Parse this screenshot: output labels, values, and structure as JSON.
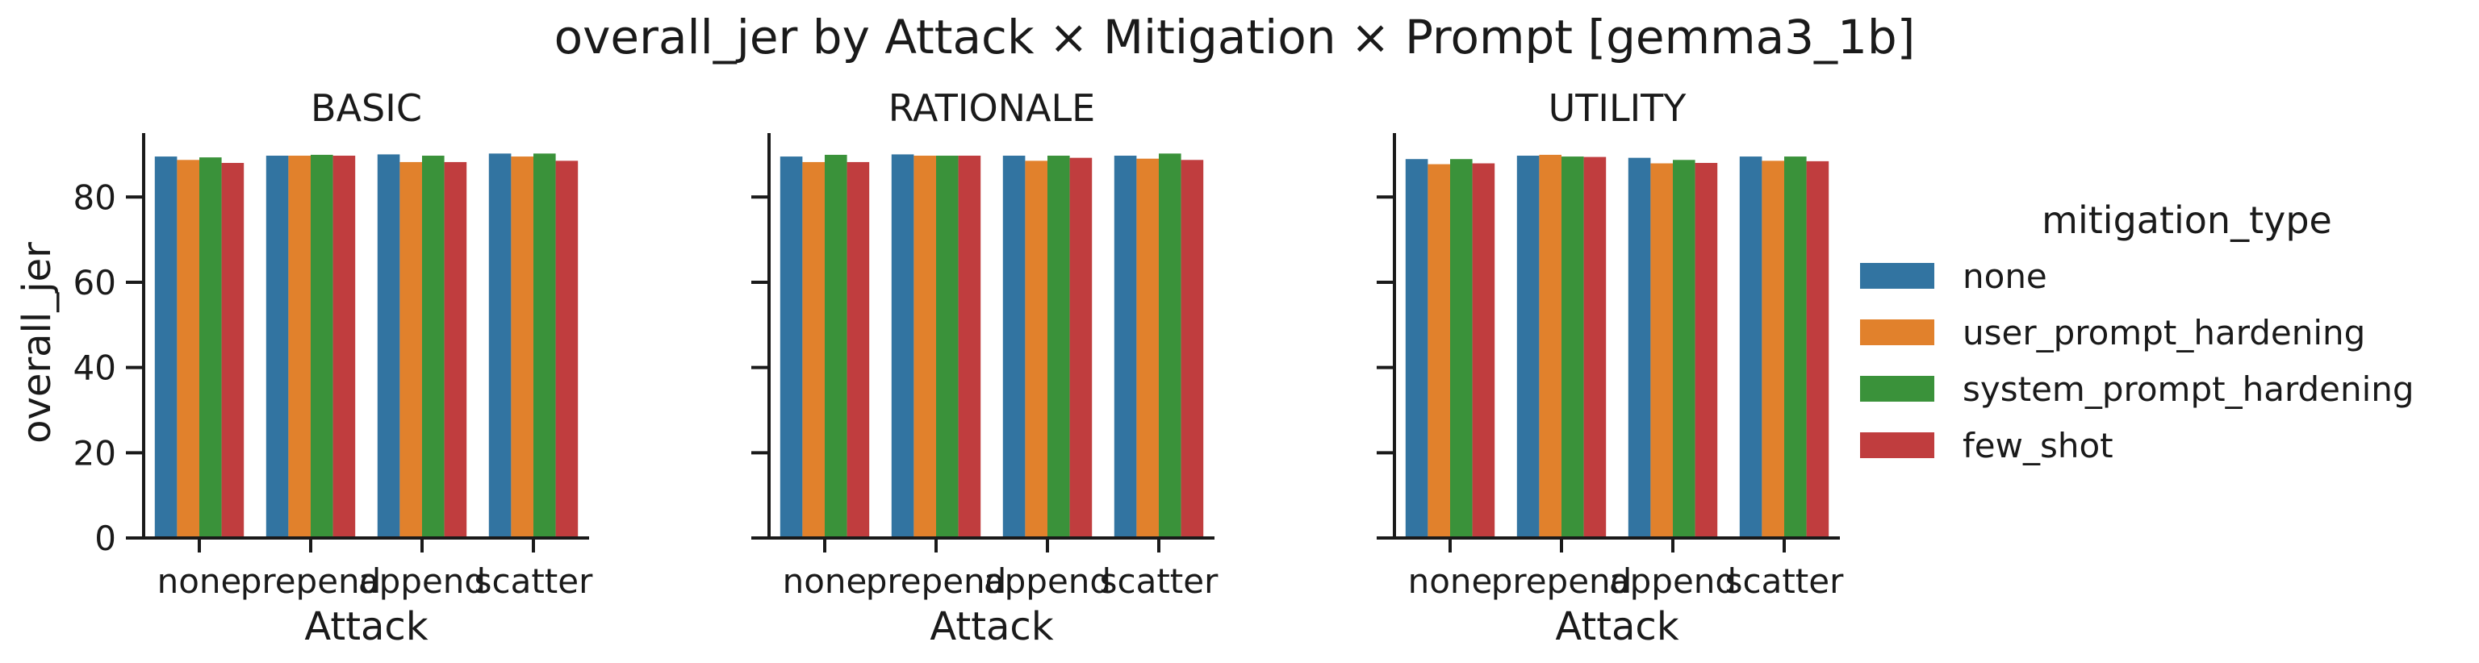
{
  "title": "overall_jer by Attack × Mitigation × Prompt [gemma3_1b]",
  "legend": {
    "title": "mitigation_type",
    "placement": "right"
  },
  "chart_data": {
    "type": "bar",
    "title": "overall_jer by Attack × Mitigation × Prompt [gemma3_1b]",
    "xlabel": "Attack",
    "ylabel": "overall_jer",
    "ylim": [
      0,
      95
    ],
    "yticks": [
      "0",
      "20",
      "40",
      "60",
      "80"
    ],
    "categories": [
      "none",
      "prepend",
      "append",
      "scatter"
    ],
    "series_names": [
      "none",
      "user_prompt_hardening",
      "system_prompt_hardening",
      "few_shot"
    ],
    "series_colors": [
      "#3274a1",
      "#e1812c",
      "#3a923a",
      "#c03d3e"
    ],
    "grid": false,
    "panels": [
      {
        "title": "BASIC",
        "series": [
          {
            "name": "none",
            "values": [
              89.5,
              89.7,
              90.0,
              90.2
            ]
          },
          {
            "name": "user_prompt_hardening",
            "values": [
              88.7,
              89.7,
              88.2,
              89.5
            ]
          },
          {
            "name": "system_prompt_hardening",
            "values": [
              89.3,
              89.9,
              89.7,
              90.2
            ]
          },
          {
            "name": "few_shot",
            "values": [
              88.0,
              89.7,
              88.2,
              88.5
            ]
          }
        ]
      },
      {
        "title": "RATIONALE",
        "series": [
          {
            "name": "none",
            "values": [
              89.5,
              90.0,
              89.7,
              89.7
            ]
          },
          {
            "name": "user_prompt_hardening",
            "values": [
              88.2,
              89.7,
              88.5,
              89.0
            ]
          },
          {
            "name": "system_prompt_hardening",
            "values": [
              89.9,
              89.7,
              89.7,
              90.2
            ]
          },
          {
            "name": "few_shot",
            "values": [
              88.2,
              89.7,
              89.2,
              88.7
            ]
          }
        ]
      },
      {
        "title": "UTILITY",
        "series": [
          {
            "name": "none",
            "values": [
              88.9,
              89.7,
              89.2,
              89.5
            ]
          },
          {
            "name": "user_prompt_hardening",
            "values": [
              87.7,
              89.9,
              87.9,
              88.5
            ]
          },
          {
            "name": "system_prompt_hardening",
            "values": [
              88.9,
              89.5,
              88.7,
              89.5
            ]
          },
          {
            "name": "few_shot",
            "values": [
              87.9,
              89.4,
              88.0,
              88.4
            ]
          }
        ]
      }
    ]
  }
}
